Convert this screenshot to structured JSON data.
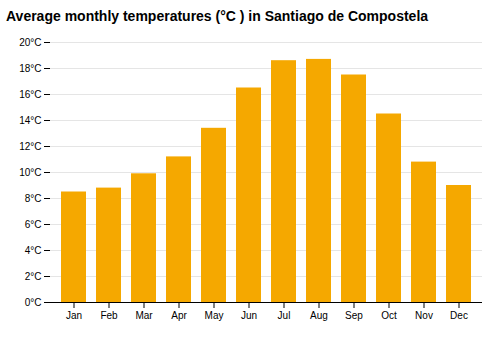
{
  "chart_data": {
    "type": "bar",
    "title": "Average monthly temperatures (°C ) in Santiago de Compostela",
    "categories": [
      "Jan",
      "Feb",
      "Mar",
      "Apr",
      "May",
      "Jun",
      "Jul",
      "Aug",
      "Sep",
      "Oct",
      "Nov",
      "Dec"
    ],
    "values": [
      8.5,
      8.8,
      9.9,
      11.2,
      13.4,
      16.5,
      18.6,
      18.7,
      17.5,
      14.5,
      10.8,
      9.0
    ],
    "color": "#F5A800",
    "ylim": [
      0,
      20
    ],
    "yticks": [
      {
        "value": 0,
        "label": "0°C"
      },
      {
        "value": 2,
        "label": "2°C"
      },
      {
        "value": 4,
        "label": "4°C"
      },
      {
        "value": 6,
        "label": "6°C"
      },
      {
        "value": 8,
        "label": "8°C"
      },
      {
        "value": 10,
        "label": "10°C"
      },
      {
        "value": 12,
        "label": "12°C"
      },
      {
        "value": 14,
        "label": "14°C"
      },
      {
        "value": 16,
        "label": "16°C"
      },
      {
        "value": 18,
        "label": "18°C"
      },
      {
        "value": 20,
        "label": "20°C"
      }
    ],
    "grid": true
  }
}
